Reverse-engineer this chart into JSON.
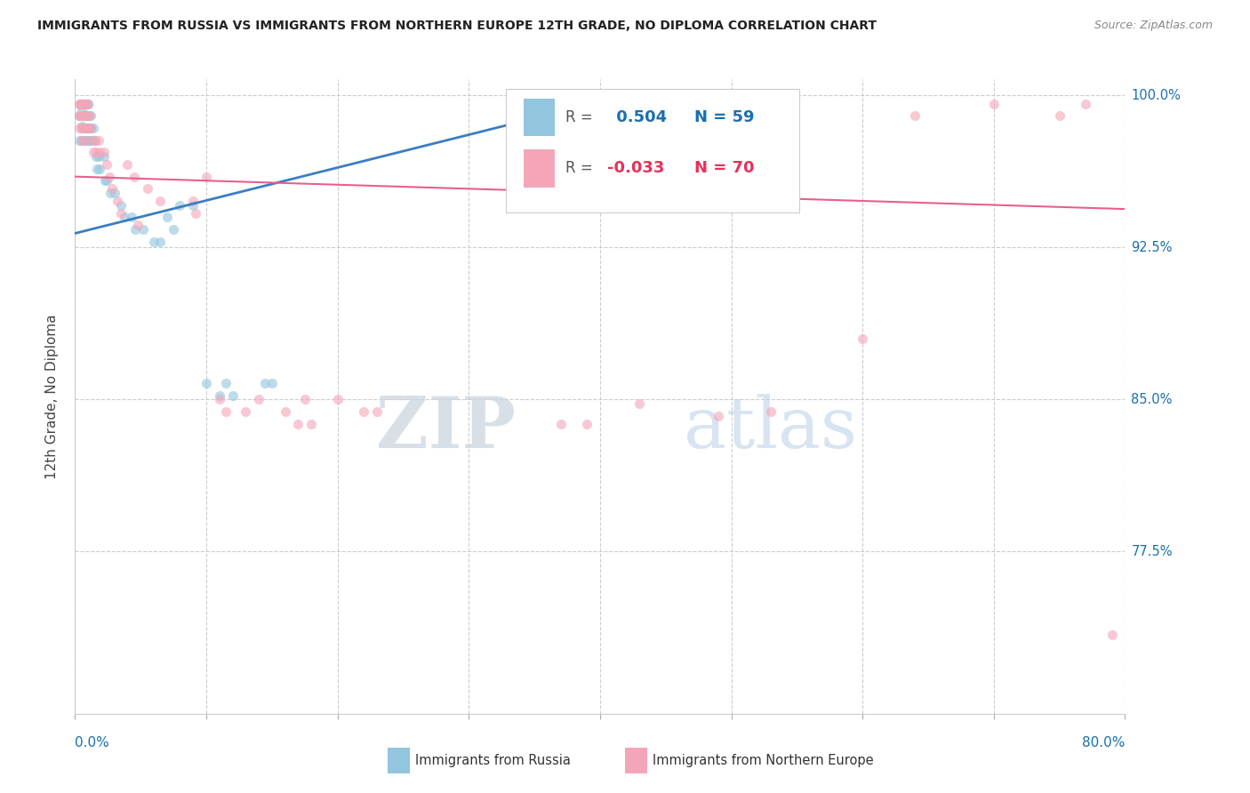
{
  "title": "IMMIGRANTS FROM RUSSIA VS IMMIGRANTS FROM NORTHERN EUROPE 12TH GRADE, NO DIPLOMA CORRELATION CHART",
  "source": "Source: ZipAtlas.com",
  "ylabel": "12th Grade, No Diploma",
  "xmin": 0.0,
  "xmax": 0.8,
  "ymin": 0.695,
  "ymax": 1.008,
  "blue_color": "#92c5de",
  "pink_color": "#f4a6b8",
  "blue_line_color": "#3a7ebf",
  "pink_line_color": "#e8608a",
  "blue_R_color": "#1a6faf",
  "pink_R_color": "#e8305a",
  "ytick_vals": [
    1.0,
    0.925,
    0.85,
    0.775
  ],
  "ytick_labels": [
    "100.0%",
    "92.5%",
    "85.0%",
    "77.5%"
  ],
  "blue_scatter": [
    [
      0.003,
      0.99
    ],
    [
      0.003,
      0.978
    ],
    [
      0.004,
      0.996
    ],
    [
      0.005,
      0.993
    ],
    [
      0.005,
      0.985
    ],
    [
      0.005,
      0.978
    ],
    [
      0.006,
      0.996
    ],
    [
      0.006,
      0.99
    ],
    [
      0.006,
      0.984
    ],
    [
      0.007,
      0.996
    ],
    [
      0.007,
      0.99
    ],
    [
      0.007,
      0.984
    ],
    [
      0.007,
      0.978
    ],
    [
      0.008,
      0.996
    ],
    [
      0.008,
      0.99
    ],
    [
      0.008,
      0.984
    ],
    [
      0.009,
      0.996
    ],
    [
      0.009,
      0.99
    ],
    [
      0.009,
      0.984
    ],
    [
      0.009,
      0.978
    ],
    [
      0.01,
      0.996
    ],
    [
      0.01,
      0.99
    ],
    [
      0.01,
      0.984
    ],
    [
      0.01,
      0.978
    ],
    [
      0.011,
      0.984
    ],
    [
      0.011,
      0.978
    ],
    [
      0.012,
      0.99
    ],
    [
      0.012,
      0.984
    ],
    [
      0.013,
      0.978
    ],
    [
      0.014,
      0.984
    ],
    [
      0.015,
      0.978
    ],
    [
      0.016,
      0.97
    ],
    [
      0.017,
      0.964
    ],
    [
      0.018,
      0.97
    ],
    [
      0.019,
      0.964
    ],
    [
      0.022,
      0.97
    ],
    [
      0.023,
      0.958
    ],
    [
      0.024,
      0.958
    ],
    [
      0.027,
      0.952
    ],
    [
      0.03,
      0.952
    ],
    [
      0.035,
      0.946
    ],
    [
      0.038,
      0.94
    ],
    [
      0.043,
      0.94
    ],
    [
      0.046,
      0.934
    ],
    [
      0.052,
      0.934
    ],
    [
      0.06,
      0.928
    ],
    [
      0.065,
      0.928
    ],
    [
      0.07,
      0.94
    ],
    [
      0.075,
      0.934
    ],
    [
      0.08,
      0.946
    ],
    [
      0.09,
      0.946
    ],
    [
      0.1,
      0.858
    ],
    [
      0.11,
      0.852
    ],
    [
      0.115,
      0.858
    ],
    [
      0.12,
      0.852
    ],
    [
      0.145,
      0.858
    ],
    [
      0.15,
      0.858
    ],
    [
      0.35,
      0.99
    ],
    [
      0.37,
      0.99
    ]
  ],
  "pink_scatter": [
    [
      0.003,
      0.996
    ],
    [
      0.003,
      0.99
    ],
    [
      0.003,
      0.984
    ],
    [
      0.004,
      0.996
    ],
    [
      0.004,
      0.99
    ],
    [
      0.005,
      0.996
    ],
    [
      0.005,
      0.99
    ],
    [
      0.005,
      0.984
    ],
    [
      0.005,
      0.978
    ],
    [
      0.006,
      0.996
    ],
    [
      0.006,
      0.99
    ],
    [
      0.006,
      0.984
    ],
    [
      0.007,
      0.996
    ],
    [
      0.007,
      0.99
    ],
    [
      0.007,
      0.984
    ],
    [
      0.007,
      0.978
    ],
    [
      0.008,
      0.996
    ],
    [
      0.008,
      0.99
    ],
    [
      0.009,
      0.99
    ],
    [
      0.009,
      0.984
    ],
    [
      0.01,
      0.996
    ],
    [
      0.01,
      0.984
    ],
    [
      0.011,
      0.99
    ],
    [
      0.012,
      0.984
    ],
    [
      0.013,
      0.978
    ],
    [
      0.014,
      0.972
    ],
    [
      0.015,
      0.978
    ],
    [
      0.016,
      0.972
    ],
    [
      0.018,
      0.978
    ],
    [
      0.019,
      0.972
    ],
    [
      0.022,
      0.972
    ],
    [
      0.024,
      0.966
    ],
    [
      0.026,
      0.96
    ],
    [
      0.028,
      0.954
    ],
    [
      0.032,
      0.948
    ],
    [
      0.035,
      0.942
    ],
    [
      0.04,
      0.966
    ],
    [
      0.045,
      0.96
    ],
    [
      0.048,
      0.936
    ],
    [
      0.055,
      0.954
    ],
    [
      0.065,
      0.948
    ],
    [
      0.09,
      0.948
    ],
    [
      0.092,
      0.942
    ],
    [
      0.1,
      0.96
    ],
    [
      0.11,
      0.85
    ],
    [
      0.115,
      0.844
    ],
    [
      0.13,
      0.844
    ],
    [
      0.14,
      0.85
    ],
    [
      0.16,
      0.844
    ],
    [
      0.17,
      0.838
    ],
    [
      0.175,
      0.85
    ],
    [
      0.18,
      0.838
    ],
    [
      0.2,
      0.85
    ],
    [
      0.22,
      0.844
    ],
    [
      0.23,
      0.844
    ],
    [
      0.37,
      0.838
    ],
    [
      0.39,
      0.838
    ],
    [
      0.43,
      0.848
    ],
    [
      0.49,
      0.842
    ],
    [
      0.53,
      0.844
    ],
    [
      0.6,
      0.88
    ],
    [
      0.64,
      0.99
    ],
    [
      0.7,
      0.996
    ],
    [
      0.75,
      0.99
    ],
    [
      0.77,
      0.996
    ],
    [
      0.79,
      0.734
    ]
  ],
  "blue_trend": [
    0.0,
    0.37,
    0.932,
    0.992
  ],
  "pink_trend": [
    0.0,
    0.8,
    0.96,
    0.944
  ],
  "watermark_zip": "ZIP",
  "watermark_atlas": "atlas",
  "marker_size": 65,
  "alpha": 0.6
}
